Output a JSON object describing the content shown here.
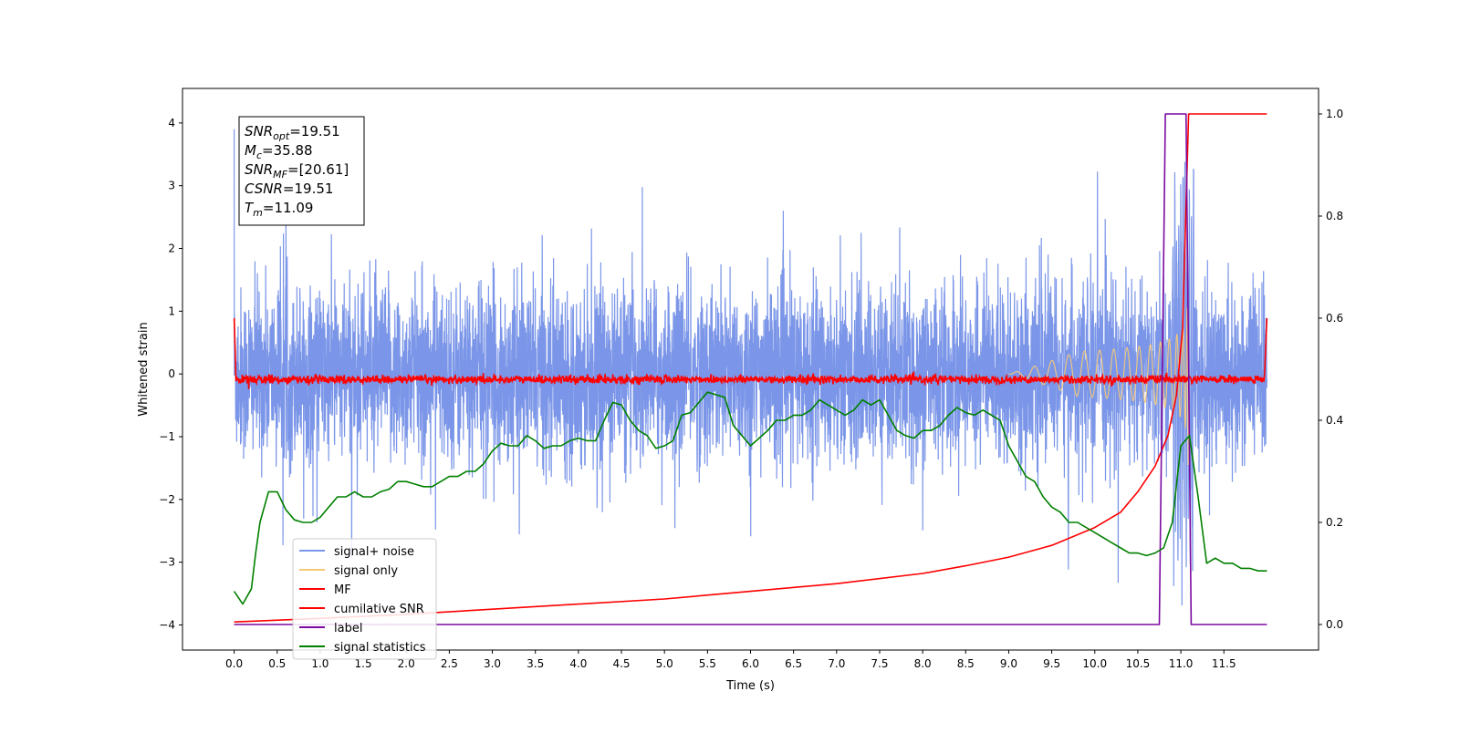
{
  "chart_data": {
    "type": "line",
    "xlabel": "Time (s)",
    "ylabel_left": "Whitened strain",
    "ylabel_right": "",
    "xlim": [
      -0.6,
      12.6
    ],
    "ylim_left": [
      -4.4,
      4.55
    ],
    "ylim_right": [
      -0.05,
      1.05
    ],
    "grid": false,
    "legend_placement": "lower-left",
    "x_ticks": [
      "0.0",
      "0.5",
      "1.0",
      "1.5",
      "2.0",
      "2.5",
      "3.0",
      "3.5",
      "4.0",
      "4.5",
      "5.0",
      "5.5",
      "6.0",
      "6.5",
      "7.0",
      "7.5",
      "8.0",
      "8.5",
      "9.0",
      "9.5",
      "10.0",
      "10.5",
      "11.0",
      "11.5"
    ],
    "y_ticks_left": [
      "4",
      "3",
      "2",
      "1",
      "0",
      "−1",
      "−2",
      "−3",
      "−4"
    ],
    "y_ticks_right": [
      "1.0",
      "0.8",
      "0.6",
      "0.4",
      "0.2",
      "0.0"
    ],
    "annotation": {
      "lines": [
        {
          "sym": "SNR",
          "sub": "opt",
          "val": "=19.51"
        },
        {
          "sym": "M",
          "sub": "c",
          "val": "=35.88"
        },
        {
          "sym": "SNR",
          "sub": "MF",
          "val": "=[20.61]"
        },
        {
          "sym": "CSNR",
          "sub": "",
          "val": "=19.51"
        },
        {
          "sym": "T",
          "sub": "m",
          "val": "=11.09"
        }
      ]
    },
    "series": [
      {
        "name": "signal+ noise",
        "color": "#7b96e8",
        "axis": "left",
        "noise_amplitude": 0.85,
        "x_range": [
          0.0,
          12.0
        ]
      },
      {
        "name": "signal only",
        "color": "#f5c97a",
        "axis": "left",
        "chirp_end": 11.09
      },
      {
        "name": "MF",
        "color": "#ff0000",
        "axis": "right",
        "baseline": 0.48,
        "x_range": [
          0.0,
          12.0
        ]
      },
      {
        "name": "cumilative SNR",
        "color": "#ff0000",
        "axis": "right",
        "x": [
          0.0,
          1.0,
          2.0,
          3.0,
          4.0,
          5.0,
          6.0,
          7.0,
          8.0,
          8.5,
          9.0,
          9.5,
          10.0,
          10.3,
          10.5,
          10.7,
          10.85,
          10.95,
          11.02,
          11.09,
          11.15,
          12.0
        ],
        "y": [
          0.005,
          0.012,
          0.02,
          0.03,
          0.04,
          0.05,
          0.065,
          0.08,
          0.1,
          0.115,
          0.132,
          0.155,
          0.19,
          0.22,
          0.26,
          0.31,
          0.37,
          0.45,
          0.58,
          1.0,
          1.0,
          1.0
        ]
      },
      {
        "name": "label",
        "color": "#7b0aa0",
        "axis": "right",
        "x": [
          0.0,
          10.75,
          10.82,
          11.06,
          11.12,
          12.0
        ],
        "y": [
          0.0,
          0.0,
          1.0,
          1.0,
          0.0,
          0.0
        ]
      },
      {
        "name": "signal statistics",
        "color": "#008000",
        "axis": "right",
        "x": [
          0.0,
          0.1,
          0.2,
          0.25,
          0.3,
          0.4,
          0.5,
          0.6,
          0.7,
          0.8,
          0.9,
          1.0,
          1.1,
          1.2,
          1.3,
          1.4,
          1.5,
          1.6,
          1.7,
          1.8,
          1.9,
          2.0,
          2.1,
          2.2,
          2.3,
          2.4,
          2.5,
          2.6,
          2.7,
          2.8,
          2.9,
          3.0,
          3.1,
          3.2,
          3.3,
          3.4,
          3.5,
          3.6,
          3.7,
          3.8,
          3.9,
          4.0,
          4.1,
          4.2,
          4.3,
          4.4,
          4.5,
          4.6,
          4.7,
          4.8,
          4.9,
          5.0,
          5.1,
          5.2,
          5.3,
          5.4,
          5.5,
          5.6,
          5.7,
          5.8,
          5.9,
          6.0,
          6.1,
          6.2,
          6.3,
          6.4,
          6.5,
          6.6,
          6.7,
          6.8,
          6.9,
          7.0,
          7.1,
          7.2,
          7.3,
          7.4,
          7.5,
          7.6,
          7.7,
          7.8,
          7.9,
          8.0,
          8.1,
          8.2,
          8.3,
          8.4,
          8.5,
          8.6,
          8.7,
          8.8,
          8.9,
          9.0,
          9.1,
          9.2,
          9.3,
          9.4,
          9.5,
          9.6,
          9.7,
          9.8,
          9.9,
          10.0,
          10.1,
          10.2,
          10.3,
          10.4,
          10.5,
          10.6,
          10.7,
          10.8,
          10.9,
          11.0,
          11.1,
          11.2,
          11.3,
          11.4,
          11.5,
          11.6,
          11.7,
          11.8,
          11.9,
          12.0
        ],
        "y": [
          0.065,
          0.04,
          0.07,
          0.14,
          0.2,
          0.26,
          0.26,
          0.225,
          0.205,
          0.2,
          0.2,
          0.21,
          0.23,
          0.25,
          0.25,
          0.26,
          0.25,
          0.25,
          0.26,
          0.265,
          0.28,
          0.28,
          0.275,
          0.27,
          0.27,
          0.28,
          0.29,
          0.29,
          0.3,
          0.3,
          0.315,
          0.34,
          0.355,
          0.35,
          0.35,
          0.37,
          0.36,
          0.345,
          0.35,
          0.35,
          0.36,
          0.365,
          0.36,
          0.36,
          0.4,
          0.435,
          0.43,
          0.4,
          0.38,
          0.37,
          0.345,
          0.35,
          0.36,
          0.41,
          0.415,
          0.435,
          0.455,
          0.45,
          0.445,
          0.39,
          0.37,
          0.35,
          0.365,
          0.38,
          0.4,
          0.4,
          0.41,
          0.41,
          0.42,
          0.44,
          0.43,
          0.42,
          0.41,
          0.42,
          0.44,
          0.43,
          0.44,
          0.41,
          0.38,
          0.37,
          0.365,
          0.38,
          0.38,
          0.39,
          0.41,
          0.425,
          0.415,
          0.41,
          0.42,
          0.41,
          0.4,
          0.35,
          0.32,
          0.29,
          0.28,
          0.25,
          0.23,
          0.22,
          0.2,
          0.2,
          0.19,
          0.18,
          0.17,
          0.16,
          0.15,
          0.14,
          0.14,
          0.135,
          0.14,
          0.15,
          0.2,
          0.35,
          0.37,
          0.25,
          0.12,
          0.13,
          0.12,
          0.12,
          0.11,
          0.11,
          0.105,
          0.105
        ]
      }
    ]
  }
}
